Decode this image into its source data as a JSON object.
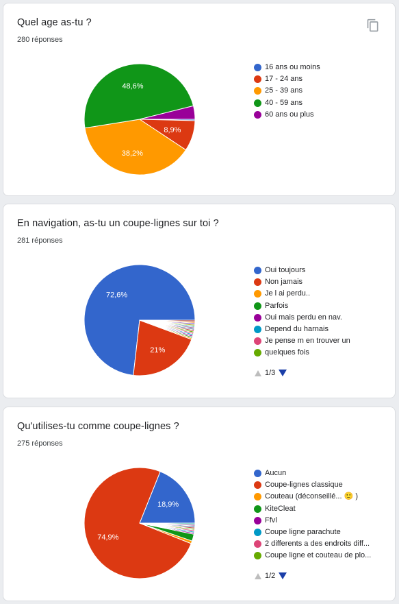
{
  "copy_icon": "copy-icon",
  "cards": [
    {
      "title": "Quel age as-tu ?",
      "count": "280 réponses",
      "show_copy": true,
      "pager": null
    },
    {
      "title": "En navigation, as-tu un coupe-lignes sur toi ?",
      "count": "281 réponses",
      "show_copy": false,
      "pager": "1/3"
    },
    {
      "title": "Qu'utilises-tu comme coupe-lignes ?",
      "count": "275 réponses",
      "show_copy": false,
      "pager": "1/2"
    }
  ],
  "chart_data": [
    {
      "type": "pie",
      "start_angle_deg": 0,
      "direction": "clockwise",
      "slices": [
        {
          "label": "16 ans ou moins",
          "value": 0.4,
          "color": "#3366cc",
          "show_label": false
        },
        {
          "label": "17 - 24 ans",
          "value": 8.9,
          "color": "#dc3912",
          "show_label": true,
          "display": "8,9%"
        },
        {
          "label": "25 - 39 ans",
          "value": 38.2,
          "color": "#ff9900",
          "show_label": true,
          "display": "38,2%"
        },
        {
          "label": "40 - 59 ans",
          "value": 48.6,
          "color": "#109618",
          "show_label": true,
          "display": "48,6%"
        },
        {
          "label": "60 ans ou plus",
          "value": 3.9,
          "color": "#990099",
          "show_label": false
        }
      ]
    },
    {
      "type": "pie",
      "start_angle_deg": 0,
      "direction": "counterclockwise",
      "slices": [
        {
          "label": "Oui toujours",
          "value": 72.6,
          "color": "#3366cc",
          "show_label": true,
          "display": "72,6%"
        },
        {
          "label": "Non jamais",
          "value": 21.0,
          "color": "#dc3912",
          "show_label": true,
          "display": "21%"
        },
        {
          "label": "Je l ai perdu..",
          "value": 0.4,
          "color": "#ff9900",
          "show_label": false
        },
        {
          "label": "Parfois",
          "value": 0.4,
          "color": "#109618",
          "show_label": false
        },
        {
          "label": "Oui mais perdu en nav.",
          "value": 0.4,
          "color": "#990099",
          "show_label": false
        },
        {
          "label": "Depend du harnais",
          "value": 0.4,
          "color": "#0099c6",
          "show_label": false
        },
        {
          "label": "Je pense m en trouver un",
          "value": 0.4,
          "color": "#dd4477",
          "show_label": false
        },
        {
          "label": "quelques fois",
          "value": 0.4,
          "color": "#66aa00",
          "show_label": false
        },
        {
          "label": "",
          "value": 0.4,
          "color": "#b82e2e",
          "show_label": false,
          "legend": false
        },
        {
          "label": "",
          "value": 0.4,
          "color": "#316395",
          "show_label": false,
          "legend": false
        },
        {
          "label": "",
          "value": 0.4,
          "color": "#994499",
          "show_label": false,
          "legend": false
        },
        {
          "label": "",
          "value": 0.4,
          "color": "#22aa99",
          "show_label": false,
          "legend": false
        },
        {
          "label": "",
          "value": 0.4,
          "color": "#aaaa11",
          "show_label": false,
          "legend": false
        },
        {
          "label": "",
          "value": 0.4,
          "color": "#6633cc",
          "show_label": false,
          "legend": false
        },
        {
          "label": "",
          "value": 0.4,
          "color": "#e67300",
          "show_label": false,
          "legend": false
        },
        {
          "label": "",
          "value": 0.4,
          "color": "#8b0707",
          "show_label": false,
          "legend": false
        }
      ]
    },
    {
      "type": "pie",
      "start_angle_deg": 0,
      "direction": "counterclockwise",
      "slices": [
        {
          "label": "Aucun",
          "value": 18.9,
          "color": "#3366cc",
          "show_label": true,
          "display": "18,9%"
        },
        {
          "label": "Coupe-lignes classique",
          "value": 74.9,
          "color": "#dc3912",
          "show_label": true,
          "display": "74,9%"
        },
        {
          "label": "Couteau (déconseillé... 🙂 )",
          "value": 0.8,
          "color": "#ff9900",
          "show_label": false
        },
        {
          "label": "KiteCleat",
          "value": 2.0,
          "color": "#109618",
          "show_label": false
        },
        {
          "label": "Ffvl",
          "value": 0.4,
          "color": "#990099",
          "show_label": false
        },
        {
          "label": "Coupe ligne parachute",
          "value": 0.4,
          "color": "#0099c6",
          "show_label": false
        },
        {
          "label": "2 differents a des endroits diff...",
          "value": 0.4,
          "color": "#dd4477",
          "show_label": false
        },
        {
          "label": "Coupe ligne et couteau de plo...",
          "value": 0.4,
          "color": "#66aa00",
          "show_label": false
        },
        {
          "label": "",
          "value": 0.4,
          "color": "#b82e2e",
          "show_label": false,
          "legend": false
        },
        {
          "label": "",
          "value": 0.4,
          "color": "#316395",
          "show_label": false,
          "legend": false
        },
        {
          "label": "",
          "value": 0.4,
          "color": "#994499",
          "show_label": false,
          "legend": false
        },
        {
          "label": "",
          "value": 0.4,
          "color": "#22aa99",
          "show_label": false,
          "legend": false
        }
      ]
    }
  ]
}
